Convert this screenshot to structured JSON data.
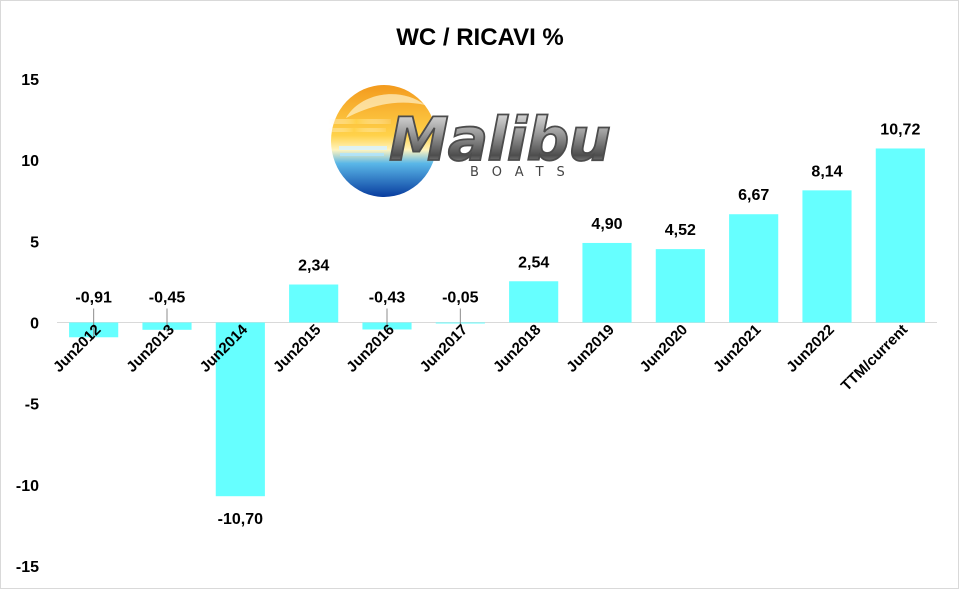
{
  "chart_data": {
    "type": "bar",
    "title": "WC / RICAVI %",
    "categories": [
      "Jun2012",
      "Jun2013",
      "Jun2014",
      "Jun2015",
      "Jun2016",
      "Jun2017",
      "Jun2018",
      "Jun2019",
      "Jun2020",
      "Jun2021",
      "Jun2022",
      "TTM/current"
    ],
    "values": [
      -0.91,
      -0.45,
      -10.7,
      2.34,
      -0.43,
      -0.05,
      2.54,
      4.9,
      4.52,
      6.67,
      8.14,
      10.72
    ],
    "data_labels": [
      "-0,91",
      "-0,45",
      "-10,70",
      "2,34",
      "-0,43",
      "-0,05",
      "2,54",
      "4,90",
      "4,52",
      "6,67",
      "8,14",
      "10,72"
    ],
    "yticks": [
      15,
      10,
      5,
      0,
      -5,
      -10,
      -15
    ],
    "ytick_labels": [
      "15",
      "10",
      "5",
      "0",
      "-5",
      "-10",
      "-15"
    ],
    "ylim": [
      -15,
      15
    ],
    "grid": false,
    "legend": "none",
    "bar_color": "#66FFFF",
    "xlabel": "",
    "ylabel": ""
  },
  "logo": {
    "name": "Malibu",
    "subtext": "BOATS"
  }
}
